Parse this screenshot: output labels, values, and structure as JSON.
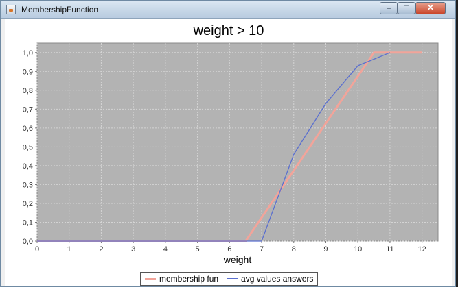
{
  "window": {
    "title": "MembershipFunction",
    "minimize_glyph": "–",
    "maximize_glyph": "□",
    "close_glyph": "✕"
  },
  "colors": {
    "plot_background": "#b3b3b3",
    "gridline": "#d4d4d4",
    "membership_series": "#f2a49a",
    "avg_series": "#5a6fcf"
  },
  "chart_data": {
    "type": "line",
    "title": "weight > 10",
    "xlabel": "weight",
    "ylabel": "",
    "xlim": [
      0,
      12.5
    ],
    "ylim": [
      0,
      1.05
    ],
    "x_ticks": [
      "0",
      "1",
      "2",
      "3",
      "4",
      "5",
      "6",
      "7",
      "8",
      "9",
      "10",
      "11",
      "12"
    ],
    "y_ticks": [
      "0,0",
      "0,1",
      "0,2",
      "0,3",
      "0,4",
      "0,5",
      "0,6",
      "0,7",
      "0,8",
      "0,9",
      "1,0"
    ],
    "grid": true,
    "legend_position": "bottom",
    "series": [
      {
        "name": "membership fun",
        "color": "#f2a49a",
        "points": [
          [
            0,
            0
          ],
          [
            6.5,
            0
          ],
          [
            10.5,
            1
          ],
          [
            12,
            1
          ]
        ]
      },
      {
        "name": "avg values answers",
        "color": "#5a6fcf",
        "points": [
          [
            0,
            0
          ],
          [
            7,
            0
          ],
          [
            8,
            0.46
          ],
          [
            9,
            0.73
          ],
          [
            10,
            0.93
          ],
          [
            11,
            1
          ]
        ]
      }
    ]
  }
}
